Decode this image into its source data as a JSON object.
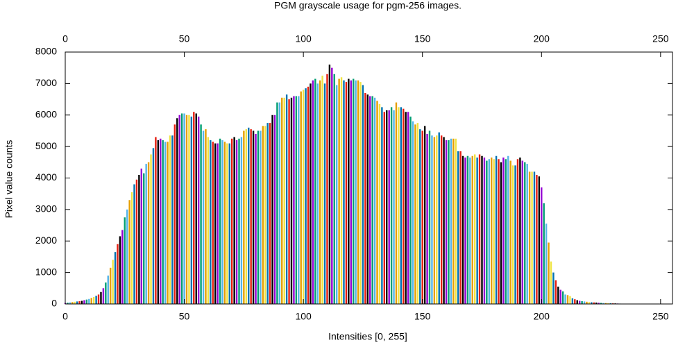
{
  "chart_data": {
    "type": "bar",
    "title": "PGM grayscale usage for pgm-256 images.",
    "x_label": "Intensities [0, 255]",
    "y_label": "Pixel value counts",
    "x": [
      0,
      1,
      2,
      3,
      4,
      5,
      6,
      7,
      8,
      9,
      10,
      11,
      12,
      13,
      14,
      15,
      16,
      17,
      18,
      19,
      20,
      21,
      22,
      23,
      24,
      25,
      26,
      27,
      28,
      29,
      30,
      31,
      32,
      33,
      34,
      35,
      36,
      37,
      38,
      39,
      40,
      41,
      42,
      43,
      44,
      45,
      46,
      47,
      48,
      49,
      50,
      51,
      52,
      53,
      54,
      55,
      56,
      57,
      58,
      59,
      60,
      61,
      62,
      63,
      64,
      65,
      66,
      67,
      68,
      69,
      70,
      71,
      72,
      73,
      74,
      75,
      76,
      77,
      78,
      79,
      80,
      81,
      82,
      83,
      84,
      85,
      86,
      87,
      88,
      89,
      90,
      91,
      92,
      93,
      94,
      95,
      96,
      97,
      98,
      99,
      100,
      101,
      102,
      103,
      104,
      105,
      106,
      107,
      108,
      109,
      110,
      111,
      112,
      113,
      114,
      115,
      116,
      117,
      118,
      119,
      120,
      121,
      122,
      123,
      124,
      125,
      126,
      127,
      128,
      129,
      130,
      131,
      132,
      133,
      134,
      135,
      136,
      137,
      138,
      139,
      140,
      141,
      142,
      143,
      144,
      145,
      146,
      147,
      148,
      149,
      150,
      151,
      152,
      153,
      154,
      155,
      156,
      157,
      158,
      159,
      160,
      161,
      162,
      163,
      164,
      165,
      166,
      167,
      168,
      169,
      170,
      171,
      172,
      173,
      174,
      175,
      176,
      177,
      178,
      179,
      180,
      181,
      182,
      183,
      184,
      185,
      186,
      187,
      188,
      189,
      190,
      191,
      192,
      193,
      194,
      195,
      196,
      197,
      198,
      199,
      200,
      201,
      202,
      203,
      204,
      205,
      206,
      207,
      208,
      209,
      210,
      211,
      212,
      213,
      214,
      215,
      216,
      217,
      218,
      219,
      220,
      221,
      222,
      223,
      224,
      225,
      226,
      227,
      228,
      229,
      230,
      231,
      232,
      233,
      234,
      235,
      236,
      237,
      238,
      239,
      240,
      241,
      242,
      243,
      244,
      245,
      246,
      247,
      248,
      249,
      250,
      251,
      252,
      253,
      254,
      255
    ],
    "values": [
      30,
      40,
      50,
      60,
      70,
      80,
      90,
      100,
      120,
      140,
      160,
      190,
      220,
      260,
      300,
      380,
      500,
      680,
      900,
      1150,
      1400,
      1650,
      1900,
      2150,
      2350,
      2750,
      3000,
      3300,
      3550,
      3800,
      3950,
      4100,
      4300,
      4150,
      4450,
      4500,
      4750,
      4950,
      5300,
      5200,
      5250,
      5200,
      5150,
      5150,
      5350,
      5350,
      5700,
      5900,
      6000,
      6050,
      6050,
      6000,
      6000,
      5950,
      6100,
      6050,
      5950,
      5700,
      5500,
      5550,
      5300,
      5200,
      5150,
      5100,
      5100,
      5250,
      5200,
      5150,
      5100,
      5100,
      5250,
      5300,
      5200,
      5250,
      5300,
      5500,
      5550,
      5600,
      5550,
      5500,
      5400,
      5500,
      5500,
      5650,
      5650,
      5750,
      5750,
      6000,
      6000,
      6400,
      6400,
      6550,
      6550,
      6650,
      6500,
      6550,
      6600,
      6600,
      6600,
      6750,
      6800,
      6850,
      6900,
      7000,
      7100,
      7150,
      7000,
      7100,
      7250,
      7000,
      7300,
      7600,
      7500,
      7300,
      6950,
      7150,
      7200,
      7100,
      7050,
      7150,
      7100,
      7150,
      7100,
      7100,
      7050,
      6950,
      6700,
      6650,
      6600,
      6600,
      6550,
      6450,
      6350,
      6250,
      6100,
      6150,
      6150,
      6250,
      6150,
      6400,
      6250,
      6250,
      6200,
      6100,
      6100,
      5950,
      5800,
      5700,
      5750,
      5550,
      5500,
      5650,
      5400,
      5500,
      5350,
      5300,
      5350,
      5450,
      5350,
      5300,
      5200,
      5200,
      5250,
      5250,
      5250,
      4850,
      4850,
      4700,
      4650,
      4700,
      4650,
      4700,
      4750,
      4650,
      4750,
      4700,
      4650,
      4550,
      4600,
      4650,
      4600,
      4700,
      4600,
      4500,
      4650,
      4600,
      4700,
      4550,
      4400,
      4400,
      4600,
      4650,
      4550,
      4500,
      4450,
      4200,
      4200,
      4200,
      4100,
      4050,
      3700,
      3200,
      2550,
      1950,
      1350,
      1000,
      750,
      550,
      450,
      400,
      300,
      280,
      250,
      180,
      150,
      120,
      100,
      90,
      80,
      70,
      60,
      55,
      50,
      45,
      40,
      35,
      30,
      28,
      25,
      22,
      20,
      18,
      15,
      12,
      10,
      8,
      6,
      5,
      4,
      3,
      2,
      1,
      0,
      0,
      0,
      0,
      0,
      0,
      0,
      0,
      0,
      0,
      0,
      0,
      0,
      0
    ],
    "colors": [
      "#9400d3",
      "#009e73",
      "#56b4e9",
      "#e69f00",
      "#f0e442",
      "#0072b2",
      "#e51e10",
      "#000000"
    ],
    "xlim": [
      0,
      255
    ],
    "xticks": [
      0,
      50,
      100,
      150,
      200,
      250
    ],
    "ylim": [
      0,
      8000
    ],
    "yticks": [
      0,
      1000,
      2000,
      3000,
      4000,
      5000,
      6000,
      7000,
      8000
    ],
    "grid": false
  }
}
